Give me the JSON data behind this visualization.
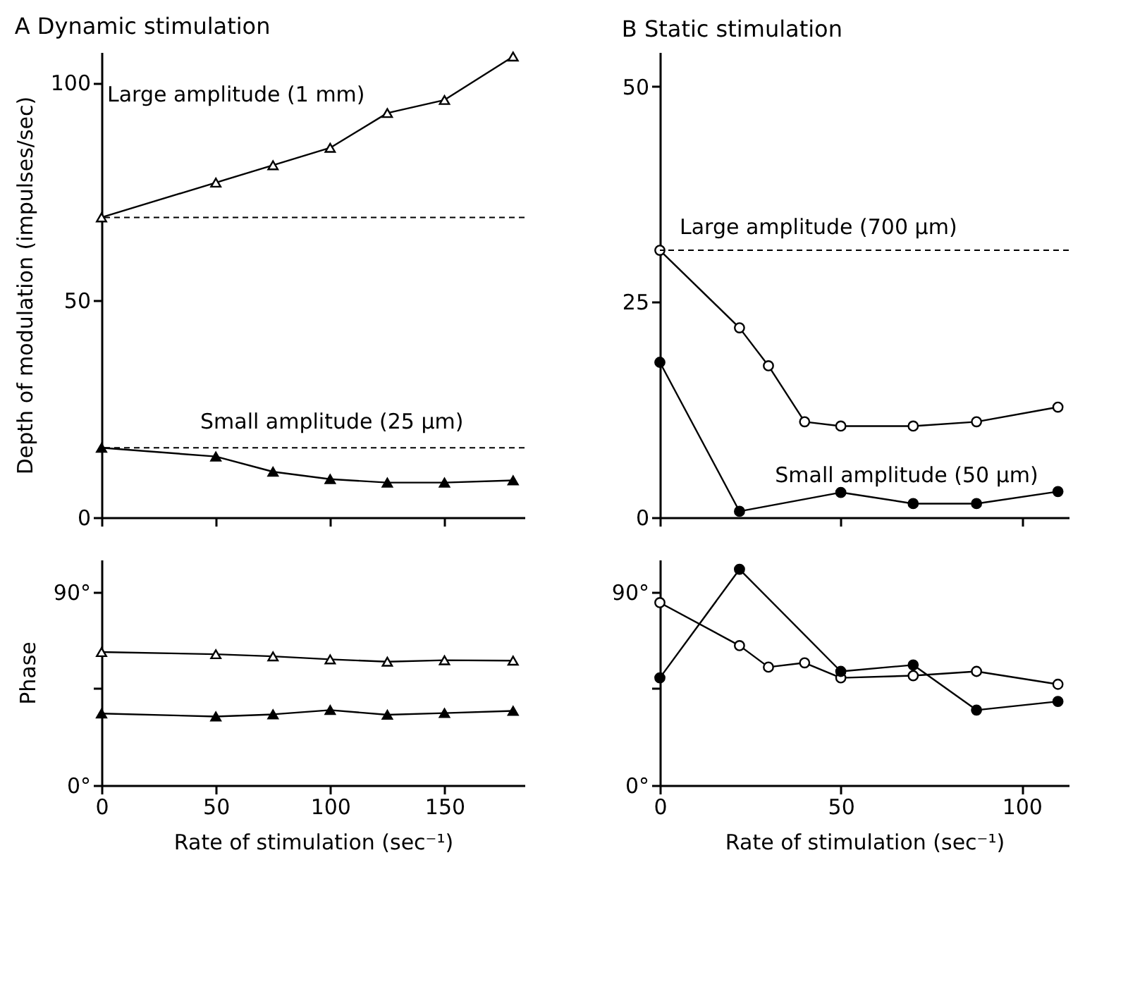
{
  "chart_data": [
    {
      "type": "line",
      "title": "A  Dynamic stimulation",
      "ylabel": "Depth of modulation (impulses/sec)",
      "xlim": [
        0,
        185
      ],
      "xticks": [
        0,
        50,
        100,
        150
      ],
      "ylim": [
        0,
        107
      ],
      "yticks": [
        0,
        50,
        100
      ],
      "tick_labels": "y",
      "grid": false,
      "line_style": "solid",
      "series": [
        {
          "name": "Large amplitude (1 mm)",
          "color": "#000000",
          "marker": "triangle",
          "x": [
            0,
            50,
            75,
            100,
            125,
            150,
            180
          ],
          "values": [
            69,
            77,
            81,
            85,
            93,
            96,
            106
          ]
        },
        {
          "name": "Small amplitude (25 μm)",
          "color": "#000000",
          "marker": "triangle",
          "x": [
            0,
            50,
            75,
            100,
            125,
            150,
            180
          ],
          "values": [
            16,
            14,
            10.5,
            8.8,
            8,
            8,
            8.5
          ]
        }
      ],
      "ref_lines": [
        {
          "axis": "y",
          "value": 69,
          "line_style": "dashed"
        },
        {
          "axis": "y",
          "value": 16,
          "line_style": "dashed"
        }
      ]
    },
    {
      "type": "line",
      "title": "B  Static stimulation",
      "xlim": [
        0,
        113
      ],
      "xticks": [
        0,
        50,
        100
      ],
      "ylim": [
        0,
        54
      ],
      "yticks": [
        0,
        25,
        50
      ],
      "tick_labels": "y",
      "grid": false,
      "line_style": "solid",
      "series": [
        {
          "name": "Large amplitude (700 μm)",
          "color": "#000000",
          "marker": "circle",
          "x": [
            0,
            22,
            30,
            40,
            50,
            70,
            87.5,
            110
          ],
          "values": [
            31,
            22,
            17.6,
            11.1,
            10.6,
            10.6,
            11.1,
            12.8
          ]
        },
        {
          "name": "Small amplitude (50 μm)",
          "color": "#000000",
          "marker": "circle",
          "x": [
            0,
            22,
            50,
            70,
            87.5,
            110
          ],
          "values": [
            18,
            0.7,
            2.9,
            1.6,
            1.6,
            3
          ]
        }
      ],
      "ref_lines": [
        {
          "axis": "y",
          "value": 31,
          "line_style": "dashed"
        }
      ]
    },
    {
      "type": "line",
      "xlabel": "Rate of stimulation (sec⁻¹)",
      "ylabel": "Phase",
      "xlim": [
        0,
        185
      ],
      "xticks": [
        0,
        50,
        100,
        150
      ],
      "ylim": [
        0,
        105
      ],
      "yticks": [
        {
          "value": 0,
          "label": "0°"
        },
        {
          "value": 45,
          "label": null
        },
        {
          "value": 90,
          "label": "90°"
        }
      ],
      "grid": false,
      "line_style": "solid",
      "series": [
        {
          "color": "#000000",
          "marker": "triangle",
          "x": [
            0,
            50,
            75,
            100,
            125,
            150,
            180
          ],
          "values": [
            62,
            61,
            60,
            58.6,
            57.5,
            58.2,
            58
          ]
        },
        {
          "color": "#000000",
          "marker": "triangle",
          "x": [
            0,
            50,
            75,
            100,
            125,
            150,
            180
          ],
          "values": [
            33.4,
            32,
            33,
            35,
            32.8,
            33.6,
            34.6
          ]
        }
      ]
    },
    {
      "type": "line",
      "xlabel": "Rate of stimulation (sec⁻¹)",
      "xlim": [
        0,
        113
      ],
      "xticks": [
        0,
        50,
        100
      ],
      "ylim": [
        0,
        105
      ],
      "yticks": [
        {
          "value": 0,
          "label": "0°"
        },
        {
          "value": 45,
          "label": null
        },
        {
          "value": 90,
          "label": "90°"
        }
      ],
      "grid": false,
      "line_style": "solid",
      "series": [
        {
          "color": "#000000",
          "marker": "circle",
          "x": [
            0,
            22,
            30,
            40,
            50,
            70,
            87.5,
            110
          ],
          "values": [
            85,
            65,
            55,
            57,
            50,
            51,
            53,
            47
          ]
        },
        {
          "color": "#000000",
          "marker": "circle",
          "x": [
            0,
            22,
            50,
            70,
            87.5,
            110
          ],
          "values": [
            50,
            100.5,
            53,
            56,
            35,
            39
          ]
        }
      ]
    }
  ]
}
